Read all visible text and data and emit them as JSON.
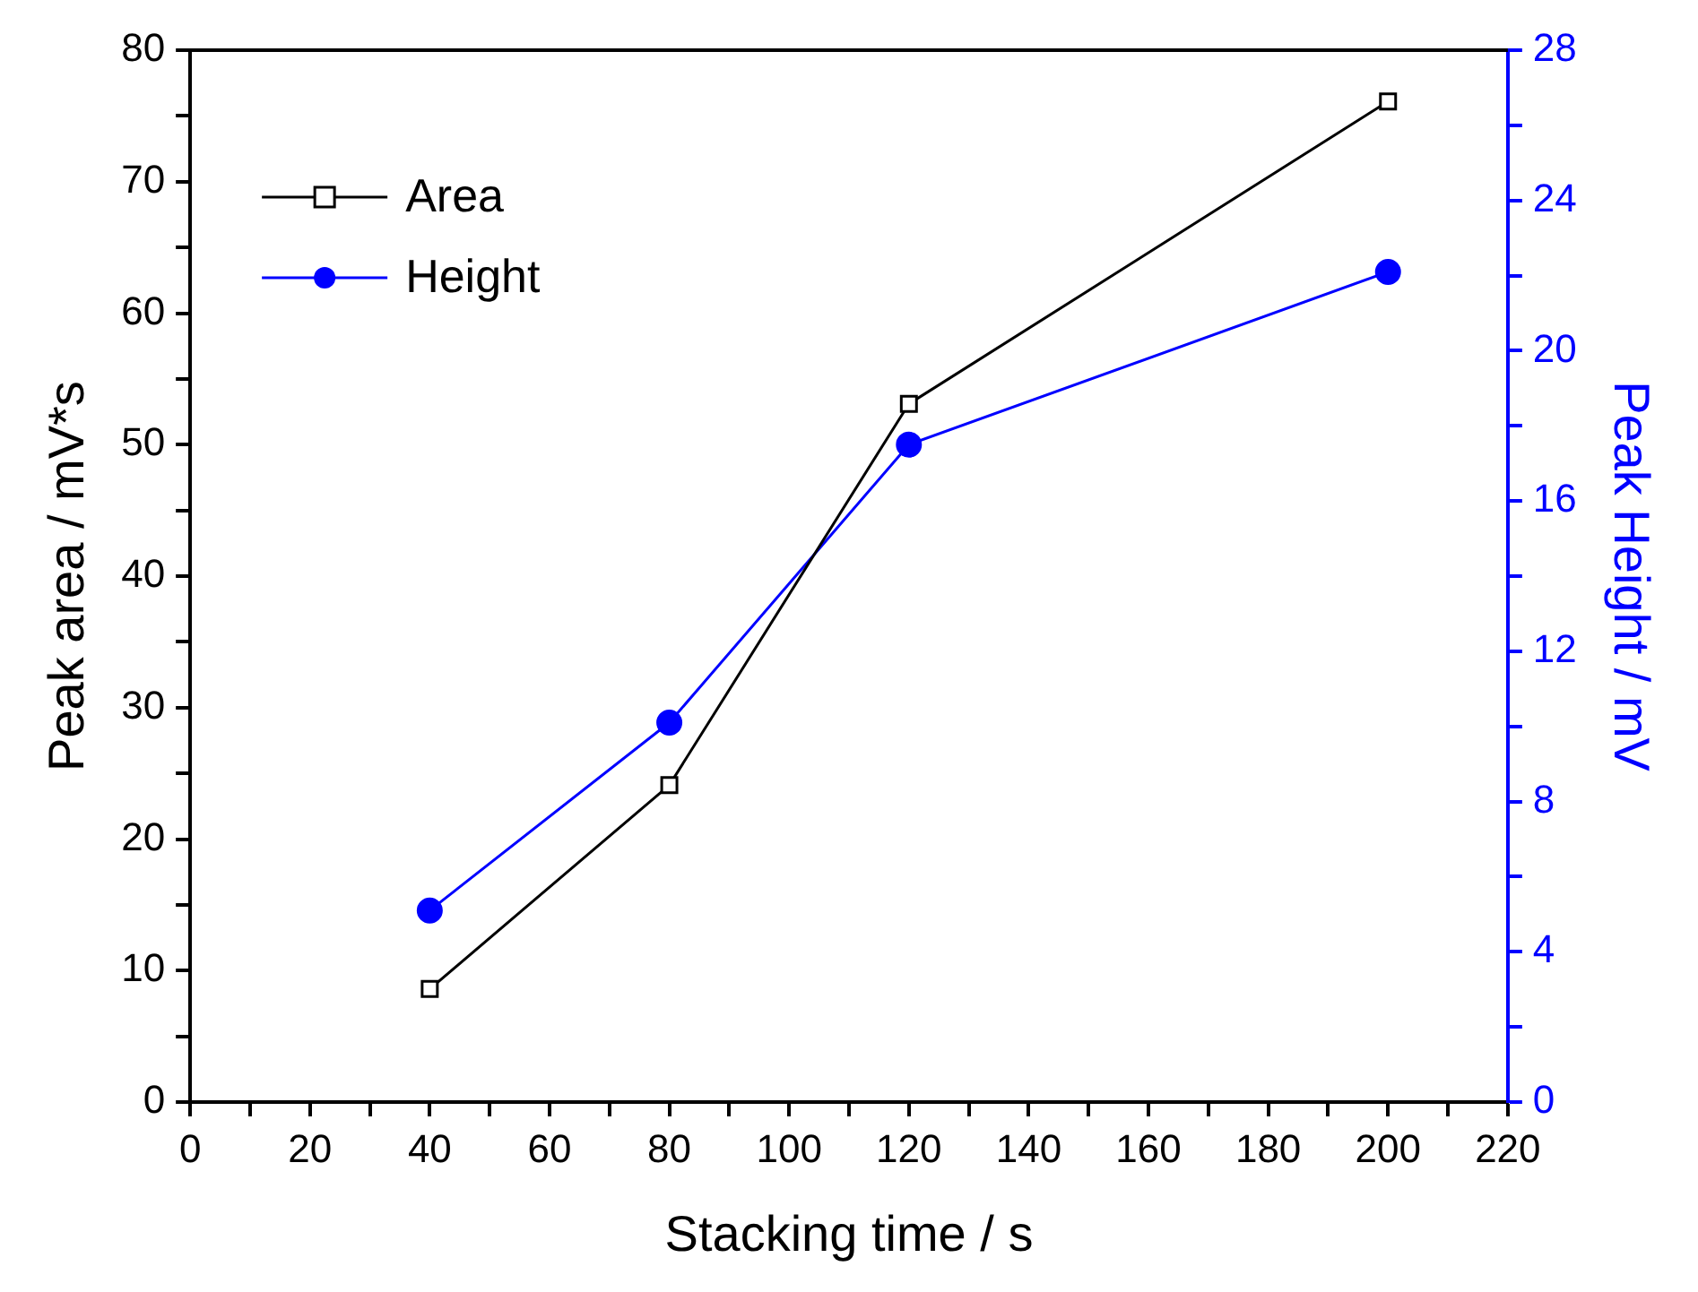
{
  "chart_data": {
    "type": "line",
    "xlabel": "Stacking time / s",
    "ylabel": "Peak area / mV*s",
    "y2label": "Peak Height / mV",
    "x": [
      40,
      80,
      120,
      200
    ],
    "series": [
      {
        "name": "Area",
        "color": "#000000",
        "values": [
          8.6,
          24.1,
          53.1,
          76.1
        ],
        "marker": "square"
      },
      {
        "name": "Height",
        "color": "#0000ff",
        "values": [
          5.1,
          10.1,
          17.5,
          22.1
        ],
        "marker": "circle",
        "axis": "y2"
      }
    ],
    "xlim": [
      0,
      220
    ],
    "xticks": [
      0,
      {
        "value": 10,
        "label": null
      },
      20,
      {
        "value": 30,
        "label": null
      },
      40,
      {
        "value": 50,
        "label": null
      },
      60,
      {
        "value": 70,
        "label": null
      },
      80,
      {
        "value": 90,
        "label": null
      },
      100,
      {
        "value": 110,
        "label": null
      },
      120,
      {
        "value": 130,
        "label": null
      },
      140,
      {
        "value": 150,
        "label": null
      },
      160,
      {
        "value": 170,
        "label": null
      },
      180,
      {
        "value": 190,
        "label": null
      },
      200,
      {
        "value": 210,
        "label": null
      },
      220
    ],
    "ylim": [
      0,
      80
    ],
    "yticks": [
      0,
      {
        "value": 5,
        "label": null
      },
      10,
      {
        "value": 15,
        "label": null
      },
      20,
      {
        "value": 25,
        "label": null
      },
      30,
      {
        "value": 35,
        "label": null
      },
      40,
      {
        "value": 45,
        "label": null
      },
      50,
      {
        "value": 55,
        "label": null
      },
      60,
      {
        "value": 65,
        "label": null
      },
      70,
      {
        "value": 75,
        "label": null
      },
      80
    ],
    "y2lim": [
      0,
      28
    ],
    "y2ticks": [
      0,
      {
        "value": 2,
        "label": null
      },
      4,
      {
        "value": 6,
        "label": null
      },
      8,
      {
        "value": 10,
        "label": null
      },
      12,
      {
        "value": 14,
        "label": null
      },
      16,
      {
        "value": 18,
        "label": null
      },
      20,
      {
        "value": 22,
        "label": null
      },
      24,
      {
        "value": 26,
        "label": null
      },
      28
    ],
    "grid": false,
    "legend": "top left"
  }
}
